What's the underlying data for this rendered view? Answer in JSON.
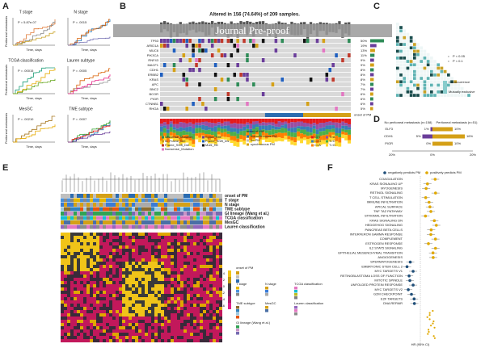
{
  "watermark": "Journal Pre-proof",
  "panel_a": {
    "label": "A",
    "y_label": "Peritoneal metastasis",
    "x_label": "Time, days",
    "plots": [
      {
        "title": "T stage",
        "pvalue": "P = 5.87e-07"
      },
      {
        "title": "N stage",
        "pvalue": "P = .0015"
      },
      {
        "title": "TCGA classification",
        "pvalue": "P = .00015"
      },
      {
        "title": "Lauren subtype",
        "pvalue": "P = .0005"
      },
      {
        "title": "MesGC",
        "pvalue": "P = .00210"
      },
      {
        "title": "TME subtype",
        "pvalue": "P = .0007"
      }
    ]
  },
  "panel_b": {
    "label": "B",
    "title": "Altered in 156 (74.64%) of 209 samples.",
    "genes": [
      "TP53",
      "ARID1A",
      "MUC6",
      "PIK3CA",
      "RNF43",
      "MACF1",
      "CDH1",
      "ERBB2",
      "KRAS",
      "APC",
      "BNC2",
      "BCOR",
      "PIGR",
      "CTNNB1",
      "RHOA"
    ],
    "percents": [
      "50%",
      "19%",
      "13%",
      "11%",
      "9%",
      "9%",
      "8%",
      "8%",
      "8%",
      "7%",
      "7%",
      "6%",
      "6%",
      "6%",
      "5%"
    ],
    "onset_label": "onset of PM",
    "legend_mutations": [
      "Missense_Mutation",
      "Splice_Site",
      "In_Frame_Del",
      "Frame_Shift_Ins",
      "Frame_Shift_Del",
      "Multi_Hit",
      "Nonsense_Mutation"
    ],
    "legend_onset": [
      "metachronous PM",
      "no PM",
      "synchronous PM"
    ],
    "legend_snv": [
      "C>T",
      "T>A",
      "C>G",
      "T>C",
      "C>A",
      "T>G"
    ]
  },
  "panel_c": {
    "label": "C",
    "legend": [
      "P < 0.05",
      "P < 0.1",
      "Co-occurrence",
      "Mutually exclusive"
    ]
  },
  "panel_d": {
    "label": "D",
    "left_title": "No peritoneal metastasis (n=158)",
    "right_title": "Peritoneal metastasis (n=51)",
    "genes": [
      "ELF3",
      "CDH1",
      "PIGR"
    ],
    "left_values": [
      "1%",
      "5%",
      "0%"
    ],
    "right_values": [
      "10%",
      "16%",
      "10%"
    ],
    "axis": [
      "20%",
      "0%",
      "20%"
    ]
  },
  "panel_e": {
    "label": "E",
    "rows": [
      "onset of PM",
      "T stage",
      "N stage",
      "TME subtype",
      "GI lineage (Wang et al.)",
      "TCGA classification",
      "MesGC",
      "Lauren classification"
    ],
    "scale": [
      "4",
      "2",
      "0",
      "-2",
      "-4",
      "-6"
    ]
  },
  "panel_f": {
    "label": "F",
    "legend": [
      "negatively predicts PM",
      "positively predicts PM"
    ],
    "pathways": [
      "COAGULATION",
      "KRAS SIGNALING UP",
      "MYOGENESIS",
      "RETINOL SIGNALING",
      "T CELL STIMULATION",
      "IMMUNE INFILTRATION",
      "APICAL SURFACE",
      "TNF TAZ PATHWAY",
      "STROMAL INFILTRATION",
      "KRAS SIGNALING DN",
      "HEDGEHOG SIGNALING",
      "PANCREAS BETA CELLS",
      "INTERFERON GAMMA RESPONSE",
      "COMPLEMENT",
      "ESTROGEN RESPONSE",
      "IL2 STAT5 SIGNALING",
      "EPITHELIAL MESENCHYMAL TRANSITION",
      "ANGIOGENESIS",
      "SPERMATOGENESIS",
      "EMBRYONIC STEM CELL 2",
      "MYC TARGETS V1",
      "RETINOBLASTOMA LOSS OF FUNCTION",
      "MITOTIC SPINDLE",
      "UNFOLDED PROTEIN RESPONSE",
      "MYC TARGETS V2",
      "G2M CHECKPOINT",
      "E2F TARGETS",
      "DNA REPAIR"
    ],
    "x_label": "HR (95% CI)"
  }
}
